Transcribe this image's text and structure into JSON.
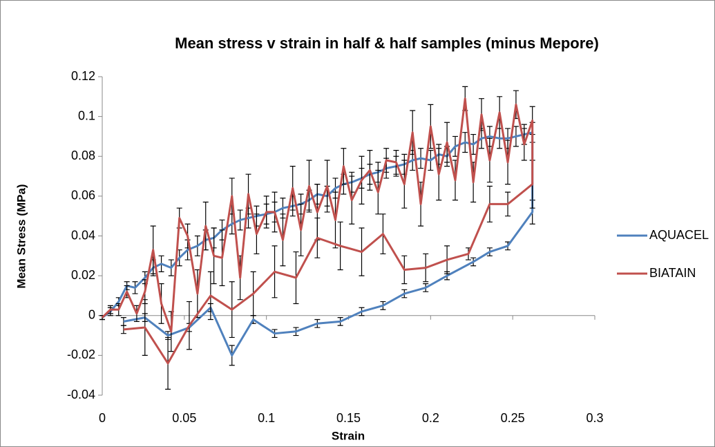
{
  "chart_data": {
    "type": "line",
    "title": "Mean stress v strain in half & half samples (minus Mepore)",
    "x_label": "Strain",
    "y_label": "Mean Stress (MPa)",
    "xlim": [
      0,
      0.3
    ],
    "xticks": [
      0,
      0.05,
      0.1,
      0.15,
      0.2,
      0.25,
      0.3
    ],
    "ylim": [
      -0.04,
      0.12
    ],
    "yticks": [
      -0.04,
      -0.02,
      0,
      0.02,
      0.04,
      0.06,
      0.08,
      0.1,
      0.12
    ],
    "series": [
      {
        "name": "AQUACEL",
        "color": "#4f81bd",
        "x": [
          0,
          0.005,
          0.01,
          0.015,
          0.02,
          0.026,
          0.031,
          0.036,
          0.042,
          0.047,
          0.052,
          0.058,
          0.063,
          0.068,
          0.073,
          0.079,
          0.084,
          0.089,
          0.094,
          0.1,
          0.105,
          0.11,
          0.116,
          0.121,
          0.126,
          0.131,
          0.137,
          0.142,
          0.147,
          0.152,
          0.158,
          0.163,
          0.168,
          0.173,
          0.179,
          0.184,
          0.189,
          0.194,
          0.2,
          0.205,
          0.21,
          0.215,
          0.221,
          0.226,
          0.231,
          0.236,
          0.242,
          0.247,
          0.252,
          0.257,
          0.262,
          0.262,
          0.247,
          0.236,
          0.226,
          0.21,
          0.197,
          0.184,
          0.171,
          0.158,
          0.145,
          0.131,
          0.118,
          0.105,
          0.092,
          0.079,
          0.066,
          0.053,
          0.04,
          0.026,
          0.013
        ],
        "values": [
          -0.001,
          0.002,
          0.007,
          0.015,
          0.014,
          0.019,
          0.024,
          0.026,
          0.024,
          0.029,
          0.033,
          0.035,
          0.038,
          0.039,
          0.043,
          0.046,
          0.048,
          0.049,
          0.05,
          0.051,
          0.052,
          0.054,
          0.055,
          0.056,
          0.058,
          0.061,
          0.06,
          0.064,
          0.066,
          0.067,
          0.069,
          0.071,
          0.072,
          0.074,
          0.075,
          0.076,
          0.078,
          0.079,
          0.078,
          0.081,
          0.08,
          0.085,
          0.087,
          0.086,
          0.089,
          0.09,
          0.089,
          0.089,
          0.09,
          0.091,
          0.092,
          0.052,
          0.035,
          0.032,
          0.027,
          0.02,
          0.014,
          0.011,
          0.005,
          0.002,
          -0.003,
          -0.004,
          -0.008,
          -0.009,
          -0.002,
          -0.02,
          0.004,
          -0.006,
          -0.01,
          -0.001,
          -0.003
        ],
        "errors": [
          0.001,
          0.002,
          0.002,
          0.002,
          0.003,
          0.003,
          0.004,
          0.004,
          0.004,
          0.004,
          0.005,
          0.005,
          0.005,
          0.005,
          0.005,
          0.005,
          0.005,
          0.005,
          0.005,
          0.005,
          0.005,
          0.005,
          0.005,
          0.005,
          0.005,
          0.005,
          0.005,
          0.005,
          0.005,
          0.005,
          0.005,
          0.005,
          0.005,
          0.005,
          0.005,
          0.005,
          0.005,
          0.005,
          0.005,
          0.005,
          0.005,
          0.005,
          0.005,
          0.005,
          0.005,
          0.005,
          0.005,
          0.005,
          0.005,
          0.005,
          0.005,
          0.006,
          0.002,
          0.002,
          0.002,
          0.002,
          0.002,
          0.002,
          0.002,
          0.002,
          0.002,
          0.002,
          0.002,
          0.002,
          0.002,
          0.005,
          0.002,
          0.002,
          0.002,
          0.002,
          0.002
        ]
      },
      {
        "name": "BIATAIN",
        "color": "#c0504d",
        "x": [
          0,
          0.005,
          0.01,
          0.015,
          0.021,
          0.026,
          0.031,
          0.036,
          0.042,
          0.047,
          0.052,
          0.058,
          0.063,
          0.068,
          0.073,
          0.079,
          0.084,
          0.089,
          0.094,
          0.1,
          0.105,
          0.11,
          0.116,
          0.121,
          0.126,
          0.131,
          0.137,
          0.142,
          0.147,
          0.152,
          0.158,
          0.163,
          0.168,
          0.173,
          0.179,
          0.184,
          0.189,
          0.194,
          0.2,
          0.205,
          0.21,
          0.215,
          0.221,
          0.226,
          0.231,
          0.236,
          0.242,
          0.247,
          0.252,
          0.257,
          0.262,
          0.262,
          0.247,
          0.236,
          0.223,
          0.21,
          0.197,
          0.184,
          0.171,
          0.158,
          0.145,
          0.131,
          0.118,
          0.105,
          0.092,
          0.079,
          0.066,
          0.053,
          0.04,
          0.026,
          0.013
        ],
        "values": [
          -0.001,
          0.003,
          0.003,
          0.012,
          0.001,
          0.012,
          0.033,
          0.006,
          -0.008,
          0.049,
          0.04,
          0.011,
          0.045,
          0.03,
          0.029,
          0.06,
          0.019,
          0.061,
          0.041,
          0.052,
          0.052,
          0.038,
          0.064,
          0.043,
          0.065,
          0.052,
          0.065,
          0.048,
          0.075,
          0.058,
          0.068,
          0.073,
          0.062,
          0.078,
          0.077,
          0.066,
          0.092,
          0.056,
          0.095,
          0.071,
          0.087,
          0.068,
          0.109,
          0.067,
          0.101,
          0.078,
          0.102,
          0.077,
          0.106,
          0.086,
          0.098,
          0.066,
          0.056,
          0.056,
          0.031,
          0.028,
          0.024,
          0.023,
          0.041,
          0.032,
          0.035,
          0.039,
          0.019,
          0.022,
          0.011,
          0.003,
          0.01,
          -0.005,
          -0.024,
          -0.006,
          -0.007
        ],
        "errors": [
          0.001,
          0.002,
          0.003,
          0.003,
          0.004,
          0.006,
          0.012,
          0.01,
          0.01,
          0.005,
          0.006,
          0.012,
          0.012,
          0.014,
          0.014,
          0.009,
          0.011,
          0.01,
          0.01,
          0.008,
          0.01,
          0.013,
          0.011,
          0.013,
          0.013,
          0.014,
          0.013,
          0.014,
          0.009,
          0.012,
          0.012,
          0.01,
          0.011,
          0.006,
          0.006,
          0.012,
          0.011,
          0.011,
          0.011,
          0.013,
          0.01,
          0.01,
          0.006,
          0.01,
          0.008,
          0.011,
          0.008,
          0.011,
          0.007,
          0.008,
          0.007,
          0.012,
          0.006,
          0.009,
          0.003,
          0.007,
          0.007,
          0.007,
          0.01,
          0.012,
          0.012,
          0.01,
          0.013,
          0.013,
          0.011,
          0.014,
          0.012,
          0.012,
          0.013,
          0.014,
          0.002
        ]
      }
    ],
    "legend": "right"
  }
}
